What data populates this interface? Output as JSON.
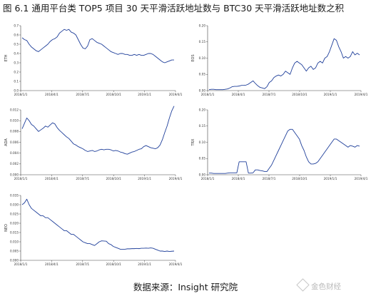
{
  "title": "图 6.1  通用平台类 TOP5 项目 30 天平滑活跃地址数与 BTC30 天平滑活跃地址数之积",
  "source": "数据来源：Insight 研究院",
  "watermark": "金色财经",
  "colors": {
    "line": "#1f3f9a",
    "axis": "#444444"
  },
  "chart_data": [
    {
      "type": "line",
      "ylabel": "ETH",
      "yticks": [
        "0.0",
        "0.1",
        "0.2",
        "0.3",
        "0.4",
        "0.5",
        "0.6",
        "0.7"
      ],
      "ylim": [
        0,
        0.7
      ],
      "xticks": [
        "2018/1/1",
        "2018/4/1",
        "2018/7/1",
        "2018/10/1",
        "2019/1/1",
        "2019/4/1"
      ],
      "series": [
        {
          "values": [
            0.57,
            0.55,
            0.54,
            0.5,
            0.47,
            0.45,
            0.43,
            0.42,
            0.44,
            0.46,
            0.48,
            0.5,
            0.53,
            0.55,
            0.56,
            0.58,
            0.62,
            0.64,
            0.66,
            0.65,
            0.66,
            0.63,
            0.62,
            0.6,
            0.55,
            0.5,
            0.46,
            0.45,
            0.48,
            0.55,
            0.56,
            0.54,
            0.52,
            0.51,
            0.5,
            0.48,
            0.46,
            0.44,
            0.42,
            0.41,
            0.4,
            0.39,
            0.4,
            0.4,
            0.39,
            0.39,
            0.38,
            0.38,
            0.39,
            0.38,
            0.39,
            0.38,
            0.38,
            0.39,
            0.4,
            0.4,
            0.39,
            0.37,
            0.35,
            0.33,
            0.31,
            0.3,
            0.31,
            0.32,
            0.33,
            0.33
          ]
        }
      ]
    },
    {
      "type": "line",
      "ylabel": "EOS",
      "yticks": [
        "0.00",
        "0.05",
        "0.10",
        "0.15",
        "0.20"
      ],
      "ylim": [
        0,
        0.2
      ],
      "xticks": [
        "2018/1/1",
        "2018/4/1",
        "2018/7/1",
        "2018/10/1",
        "2019/1/1",
        "2019/4/1"
      ],
      "series": [
        {
          "values": [
            0.003,
            0.004,
            0.004,
            0.003,
            0.003,
            0.003,
            0.003,
            0.004,
            0.005,
            0.008,
            0.012,
            0.013,
            0.013,
            0.014,
            0.016,
            0.016,
            0.017,
            0.02,
            0.025,
            0.03,
            0.022,
            0.015,
            0.01,
            0.008,
            0.006,
            0.012,
            0.025,
            0.03,
            0.04,
            0.045,
            0.048,
            0.045,
            0.05,
            0.06,
            0.055,
            0.05,
            0.07,
            0.085,
            0.09,
            0.085,
            0.08,
            0.07,
            0.06,
            0.07,
            0.075,
            0.065,
            0.07,
            0.085,
            0.09,
            0.085,
            0.1,
            0.105,
            0.12,
            0.14,
            0.16,
            0.155,
            0.135,
            0.12,
            0.1,
            0.105,
            0.1,
            0.105,
            0.12,
            0.11,
            0.115,
            0.11
          ]
        }
      ]
    },
    {
      "type": "line",
      "ylabel": "ADA",
      "yticks": [
        "0.000",
        "0.002",
        "0.004",
        "0.006",
        "0.008",
        "0.010",
        "0.012"
      ],
      "ylim": [
        0,
        0.012
      ],
      "xticks": [
        "2018/1/1",
        "2018/4/1",
        "2018/7/1",
        "2018/10/1",
        "2019/1/1",
        "2019/4/1"
      ],
      "series": [
        {
          "values": [
            0.0085,
            0.0095,
            0.0105,
            0.01,
            0.0093,
            0.009,
            0.0085,
            0.008,
            0.0083,
            0.0086,
            0.009,
            0.0088,
            0.0092,
            0.0096,
            0.0094,
            0.0087,
            0.0082,
            0.0078,
            0.0074,
            0.007,
            0.0067,
            0.0062,
            0.0057,
            0.0055,
            0.0052,
            0.005,
            0.0048,
            0.0045,
            0.0043,
            0.0044,
            0.0045,
            0.0043,
            0.0044,
            0.0046,
            0.0047,
            0.0046,
            0.0047,
            0.0047,
            0.0046,
            0.0044,
            0.0045,
            0.0044,
            0.0042,
            0.0041,
            0.0039,
            0.0038,
            0.004,
            0.0042,
            0.0043,
            0.0045,
            0.0047,
            0.0048,
            0.0052,
            0.0054,
            0.0052,
            0.005,
            0.0049,
            0.0048,
            0.005,
            0.0055,
            0.0065,
            0.0078,
            0.009,
            0.0105,
            0.0118,
            0.0127
          ]
        }
      ]
    },
    {
      "type": "line",
      "ylabel": "TRX",
      "yticks": [
        "0.00",
        "0.05",
        "0.10",
        "0.15",
        "0.20"
      ],
      "ylim": [
        0,
        0.2
      ],
      "xticks": [
        "2018/1/1",
        "2018/4/1",
        "2018/7/1",
        "2018/10/1",
        "2019/1/1",
        "2019/4/1"
      ],
      "series": [
        {
          "values": [
            0.005,
            0.005,
            0.004,
            0.004,
            0.004,
            0.004,
            0.004,
            0.004,
            0.005,
            0.006,
            0.006,
            0.006,
            0.006,
            0.04,
            0.04,
            0.04,
            0.04,
            0.005,
            0.005,
            0.006,
            0.015,
            0.015,
            0.013,
            0.012,
            0.01,
            0.01,
            0.02,
            0.03,
            0.045,
            0.06,
            0.075,
            0.09,
            0.105,
            0.12,
            0.135,
            0.14,
            0.14,
            0.13,
            0.12,
            0.11,
            0.09,
            0.075,
            0.055,
            0.04,
            0.033,
            0.033,
            0.035,
            0.04,
            0.05,
            0.06,
            0.07,
            0.08,
            0.09,
            0.1,
            0.11,
            0.11,
            0.105,
            0.1,
            0.095,
            0.09,
            0.085,
            0.09,
            0.088,
            0.085,
            0.09,
            0.088
          ]
        }
      ]
    },
    {
      "type": "line",
      "ylabel": "NEO",
      "yticks": [
        "0.000",
        "0.005",
        "0.010",
        "0.015",
        "0.020",
        "0.025",
        "0.030",
        "0.035"
      ],
      "ylim": [
        0,
        0.035
      ],
      "xticks": [
        "2018/1/1",
        "2018/4/1",
        "2018/7/1",
        "2018/10/1",
        "2019/1/1",
        "2019/4/1"
      ],
      "series": [
        {
          "values": [
            0.03,
            0.031,
            0.033,
            0.03,
            0.028,
            0.027,
            0.026,
            0.025,
            0.024,
            0.024,
            0.023,
            0.023,
            0.022,
            0.021,
            0.02,
            0.019,
            0.018,
            0.017,
            0.016,
            0.016,
            0.015,
            0.014,
            0.014,
            0.013,
            0.012,
            0.011,
            0.01,
            0.0095,
            0.009,
            0.009,
            0.0085,
            0.008,
            0.009,
            0.01,
            0.0105,
            0.0104,
            0.0103,
            0.009,
            0.0085,
            0.0075,
            0.007,
            0.0065,
            0.006,
            0.006,
            0.006,
            0.0062,
            0.0062,
            0.0063,
            0.0063,
            0.0064,
            0.0063,
            0.0065,
            0.0065,
            0.0066,
            0.0065,
            0.0067,
            0.0065,
            0.006,
            0.0055,
            0.005,
            0.005,
            0.0048,
            0.005,
            0.0048,
            0.0049,
            0.005
          ]
        }
      ]
    }
  ]
}
